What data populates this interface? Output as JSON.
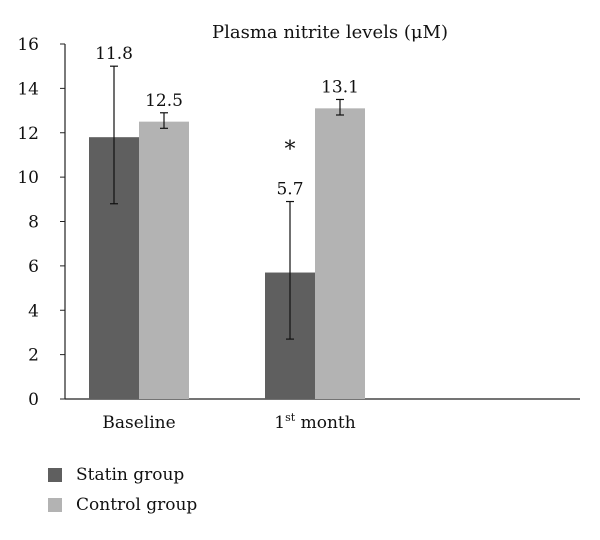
{
  "chart_data": {
    "type": "bar",
    "title": "Plasma nitrite levels (μM)",
    "xlabel": "",
    "ylabel": "",
    "ylim": [
      0,
      16
    ],
    "yticks": [
      0,
      2,
      4,
      6,
      8,
      10,
      12,
      14,
      16
    ],
    "categories": [
      {
        "main": "Baseline",
        "sup": "",
        "rest": ""
      },
      {
        "main": "1",
        "sup": "st",
        "rest": " month"
      }
    ],
    "series": [
      {
        "name": "Statin group",
        "color": "#5f5f5f",
        "values": [
          11.8,
          5.7
        ],
        "error_low": [
          8.8,
          2.7
        ],
        "error_high": [
          15.0,
          8.9
        ],
        "labels": [
          "11.8",
          "5.7"
        ],
        "annotations": [
          "",
          "*"
        ]
      },
      {
        "name": "Control group",
        "color": "#b3b3b3",
        "values": [
          12.5,
          13.1
        ],
        "error_low": [
          12.2,
          12.8
        ],
        "error_high": [
          12.9,
          13.5
        ],
        "labels": [
          "12.5",
          "13.1"
        ],
        "annotations": [
          "",
          ""
        ]
      }
    ],
    "grid": false,
    "legend": "bottom-left"
  }
}
